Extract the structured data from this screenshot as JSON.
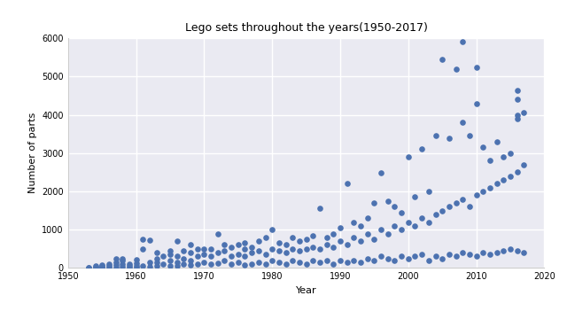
{
  "chart_data": {
    "type": "scatter",
    "title": "Lego sets throughout the years(1950-2017)",
    "x_label": "Year",
    "y_label": "Number of parts",
    "color": "#4c72b0",
    "marker": "o",
    "grid": true,
    "xlim": [
      1950,
      2020
    ],
    "xticks": [
      1950,
      1960,
      1970,
      1980,
      1990,
      2000,
      2010,
      2020
    ],
    "ylim": [
      0,
      6000
    ],
    "yticks": [
      0,
      1000,
      2000,
      3000,
      4000,
      5000,
      6000
    ],
    "x": [
      1953,
      1953,
      1954,
      1954,
      1954,
      1955,
      1955,
      1955,
      1955,
      1956,
      1956,
      1956,
      1957,
      1957,
      1957,
      1957,
      1958,
      1958,
      1958,
      1958,
      1959,
      1959,
      1959,
      1960,
      1960,
      1960,
      1960,
      1961,
      1961,
      1961,
      1962,
      1962,
      1962,
      1963,
      1963,
      1963,
      1963,
      1964,
      1964,
      1965,
      1965,
      1965,
      1965,
      1966,
      1966,
      1966,
      1966,
      1967,
      1967,
      1967,
      1968,
      1968,
      1968,
      1968,
      1969,
      1969,
      1969,
      1970,
      1970,
      1970,
      1971,
      1971,
      1971,
      1972,
      1972,
      1972,
      1973,
      1973,
      1973,
      1974,
      1974,
      1974,
      1975,
      1975,
      1975,
      1976,
      1976,
      1976,
      1976,
      1977,
      1977,
      1977,
      1978,
      1978,
      1978,
      1979,
      1979,
      1979,
      1980,
      1980,
      1980,
      1981,
      1981,
      1981,
      1982,
      1982,
      1982,
      1983,
      1983,
      1983,
      1984,
      1984,
      1984,
      1985,
      1985,
      1985,
      1986,
      1986,
      1986,
      1987,
      1987,
      1987,
      1988,
      1988,
      1988,
      1989,
      1989,
      1989,
      1990,
      1990,
      1990,
      1991,
      1991,
      1991,
      1992,
      1992,
      1992,
      1993,
      1993,
      1993,
      1994,
      1994,
      1994,
      1995,
      1995,
      1995,
      1996,
      1996,
      1996,
      1997,
      1997,
      1997,
      1998,
      1998,
      1998,
      1999,
      1999,
      1999,
      2000,
      2000,
      2000,
      2001,
      2001,
      2001,
      2002,
      2002,
      2002,
      2003,
      2003,
      2003,
      2004,
      2004,
      2004,
      2005,
      2005,
      2005,
      2006,
      2006,
      2006,
      2007,
      2007,
      2007,
      2008,
      2008,
      2008,
      2008,
      2009,
      2009,
      2009,
      2010,
      2010,
      2010,
      2010,
      2011,
      2011,
      2011,
      2012,
      2012,
      2012,
      2013,
      2013,
      2013,
      2014,
      2014,
      2014,
      2015,
      2015,
      2015,
      2016,
      2016,
      2016,
      2016,
      2016,
      2016,
      2017,
      2017,
      2017
    ],
    "values": [
      0,
      20,
      10,
      40,
      50,
      0,
      20,
      60,
      80,
      10,
      50,
      100,
      20,
      80,
      150,
      250,
      30,
      100,
      200,
      250,
      10,
      50,
      100,
      20,
      60,
      120,
      220,
      50,
      500,
      750,
      30,
      150,
      730,
      50,
      150,
      250,
      400,
      100,
      300,
      50,
      200,
      350,
      450,
      60,
      150,
      300,
      700,
      100,
      250,
      450,
      80,
      200,
      400,
      600,
      100,
      300,
      500,
      150,
      350,
      500,
      100,
      300,
      500,
      120,
      400,
      900,
      200,
      450,
      620,
      100,
      300,
      550,
      150,
      350,
      600,
      80,
      300,
      500,
      650,
      100,
      400,
      550,
      150,
      450,
      700,
      100,
      350,
      800,
      200,
      500,
      1000,
      150,
      450,
      650,
      100,
      400,
      600,
      200,
      500,
      800,
      150,
      450,
      700,
      100,
      500,
      750,
      200,
      550,
      850,
      150,
      500,
      1550,
      200,
      600,
      800,
      100,
      550,
      900,
      200,
      700,
      1050,
      150,
      600,
      2200,
      200,
      800,
      1200,
      150,
      700,
      1100,
      250,
      900,
      1300,
      200,
      750,
      1700,
      300,
      1000,
      2480,
      250,
      900,
      1750,
      200,
      1100,
      1600,
      300,
      1000,
      1450,
      250,
      1200,
      2900,
      300,
      1100,
      1850,
      350,
      1300,
      3100,
      200,
      1200,
      2000,
      300,
      1400,
      3450,
      250,
      1500,
      5450,
      350,
      1600,
      3400,
      300,
      1700,
      5200,
      400,
      1800,
      3800,
      5920,
      350,
      1600,
      3450,
      300,
      1900,
      4300,
      5250,
      400,
      2000,
      3150,
      350,
      2100,
      2800,
      400,
      2200,
      3300,
      450,
      2300,
      2900,
      500,
      2400,
      3000,
      450,
      2500,
      3900,
      4000,
      4400,
      4650,
      400,
      2700,
      4050
    ]
  }
}
